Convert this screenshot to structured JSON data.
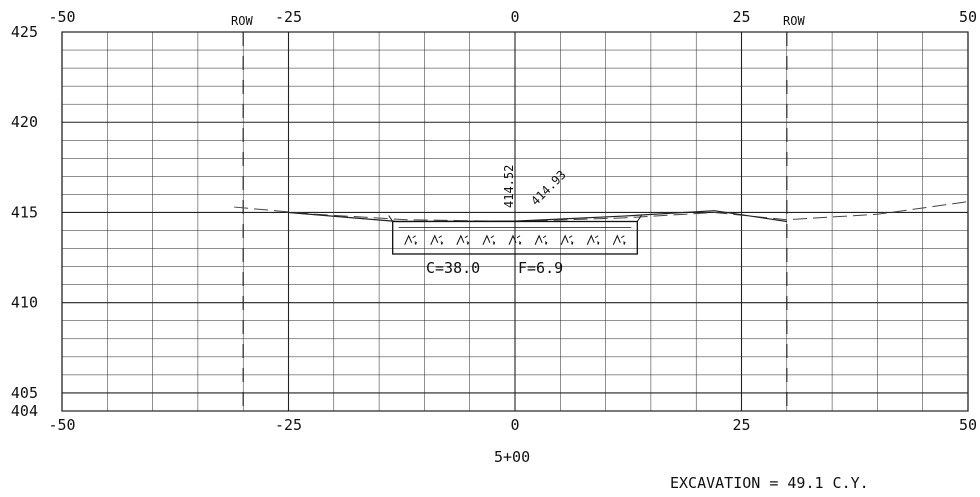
{
  "drawing": {
    "x_ticks": [
      "-50",
      "-25",
      "0",
      "25",
      "50"
    ],
    "y_ticks": [
      "425",
      "420",
      "415",
      "410",
      "405",
      "404"
    ],
    "row_labels": [
      "ROW",
      "ROW"
    ],
    "station": "5+00",
    "elev_center": "414.52",
    "elev_right": "414.93",
    "cut_label": "C=38.0",
    "fill_label": "F=6.9",
    "excavation": "EXCAVATION  =  49.1 C.Y."
  },
  "geometry_data": {
    "x_range": [
      -50,
      50
    ],
    "y_range": [
      404,
      425
    ],
    "row_offsets": [
      -30,
      30
    ],
    "existing_ground": [
      [
        -31,
        415.3
      ],
      [
        -22,
        414.9
      ],
      [
        -12,
        414.6
      ],
      [
        0,
        414.5
      ],
      [
        12,
        414.7
      ],
      [
        22,
        415.0
      ],
      [
        30,
        414.6
      ],
      [
        40,
        414.9
      ],
      [
        50,
        415.6
      ]
    ],
    "proposed_surface": [
      [
        -25,
        415.0
      ],
      [
        -13,
        414.5
      ],
      [
        0,
        414.52
      ],
      [
        12,
        414.8
      ],
      [
        22,
        415.1
      ],
      [
        30,
        414.5
      ]
    ],
    "pavement_box": {
      "x": [
        -13.5,
        13.5
      ],
      "top": 414.5,
      "bottom": 412.7
    }
  }
}
